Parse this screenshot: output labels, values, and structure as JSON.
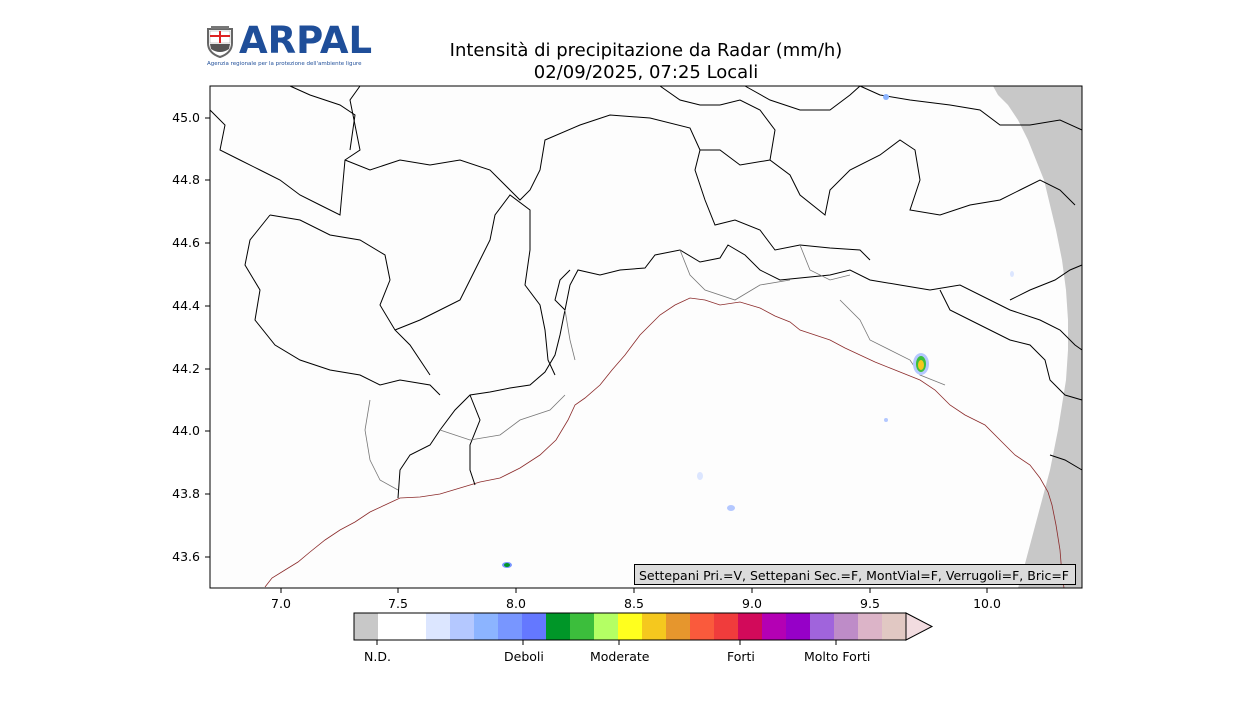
{
  "header": {
    "logo_text": "ARPAL",
    "logo_subtitle": "Agenzia regionale per la protezione dell'ambiente ligure",
    "title_line1": "Intensità di precipitazione da Radar (mm/h)",
    "title_line2": "02/09/2025, 07:25 Locali"
  },
  "axes": {
    "y_ticks": [
      "45.0",
      "44.8",
      "44.6",
      "44.4",
      "44.2",
      "44.0",
      "43.8",
      "43.6"
    ],
    "x_ticks": [
      "7.0",
      "7.5",
      "8.0",
      "8.5",
      "9.0",
      "9.5",
      "10.0"
    ],
    "xlim": [
      6.7,
      10.4
    ],
    "ylim": [
      43.5,
      45.1
    ]
  },
  "status": {
    "text": "Settepani Pri.=V, Settepani Sec.=F, MontVial=F, Verrugoli=F, Bric=F"
  },
  "colorbar": {
    "colors": [
      "#c8c8c8",
      "#ffffff",
      "#ffffff",
      "#dce6ff",
      "#b4c8ff",
      "#8cb4ff",
      "#7896ff",
      "#6478ff",
      "#009628",
      "#3cbe3c",
      "#b4ff64",
      "#ffff1e",
      "#f5c81e",
      "#e6962d",
      "#fa5a3c",
      "#f03c3c",
      "#d20a5a",
      "#b400b4",
      "#9600c8",
      "#a064dc",
      "#be8cc8",
      "#dcb4c8",
      "#e1c8c3"
    ],
    "extend_color": "#f2dce0",
    "labels": [
      "N.D.",
      "Deboli",
      "Moderate",
      "Forti",
      "Molto Forti"
    ]
  }
}
